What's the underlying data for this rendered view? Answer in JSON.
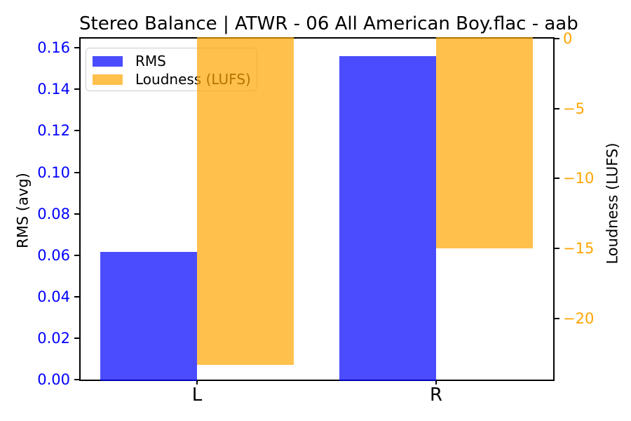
{
  "title": "Stereo Balance | ATWR - 06 All American Boy.flac - aab",
  "legend": {
    "position": "upper left",
    "items": [
      {
        "label": "RMS",
        "color": "#0000ff",
        "alpha": 0.7
      },
      {
        "label": "Loudness (LUFS)",
        "color": "#ffa500",
        "alpha": 0.7
      }
    ]
  },
  "left_axis": {
    "label": "RMS (avg)",
    "color": "#0000ff",
    "range": [
      0,
      0.1645
    ],
    "ticks": [
      {
        "v": 0.0,
        "label": "0.00"
      },
      {
        "v": 0.02,
        "label": "0.02"
      },
      {
        "v": 0.04,
        "label": "0.04"
      },
      {
        "v": 0.06,
        "label": "0.06"
      },
      {
        "v": 0.08,
        "label": "0.08"
      },
      {
        "v": 0.1,
        "label": "0.10"
      },
      {
        "v": 0.12,
        "label": "0.12"
      },
      {
        "v": 0.14,
        "label": "0.14"
      },
      {
        "v": 0.16,
        "label": "0.16"
      }
    ]
  },
  "right_axis": {
    "label": "Loudness (LUFS)",
    "color": "#ffa500",
    "range": [
      -24.37,
      0
    ],
    "ticks": [
      {
        "v": 0,
        "label": "0"
      },
      {
        "v": -5,
        "label": "−5"
      },
      {
        "v": -10,
        "label": "−10"
      },
      {
        "v": -15,
        "label": "−15"
      },
      {
        "v": -20,
        "label": "−20"
      }
    ]
  },
  "x_axis": {
    "categories": [
      "L",
      "R"
    ],
    "color": "#000000"
  },
  "chart_data": {
    "type": "bar",
    "title": "Stereo Balance | ATWR - 06 All American Boy.flac - aab",
    "categories": [
      "L",
      "R"
    ],
    "series": [
      {
        "name": "RMS",
        "axis": "left",
        "color": "#0000ff",
        "alpha": 0.7,
        "values": [
          0.0615,
          0.156
        ]
      },
      {
        "name": "Loudness (LUFS)",
        "axis": "right",
        "color": "#ffa500",
        "alpha": 0.7,
        "values": [
          -23.3,
          -15.0
        ]
      }
    ],
    "ylabel_left": "RMS (avg)",
    "ylabel_right": "Loudness (LUFS)",
    "ylim_left": [
      0,
      0.1645
    ],
    "ylim_right": [
      -24.37,
      0
    ],
    "bar_width_fraction": 0.4,
    "grid": false,
    "legend_position": "upper left"
  }
}
